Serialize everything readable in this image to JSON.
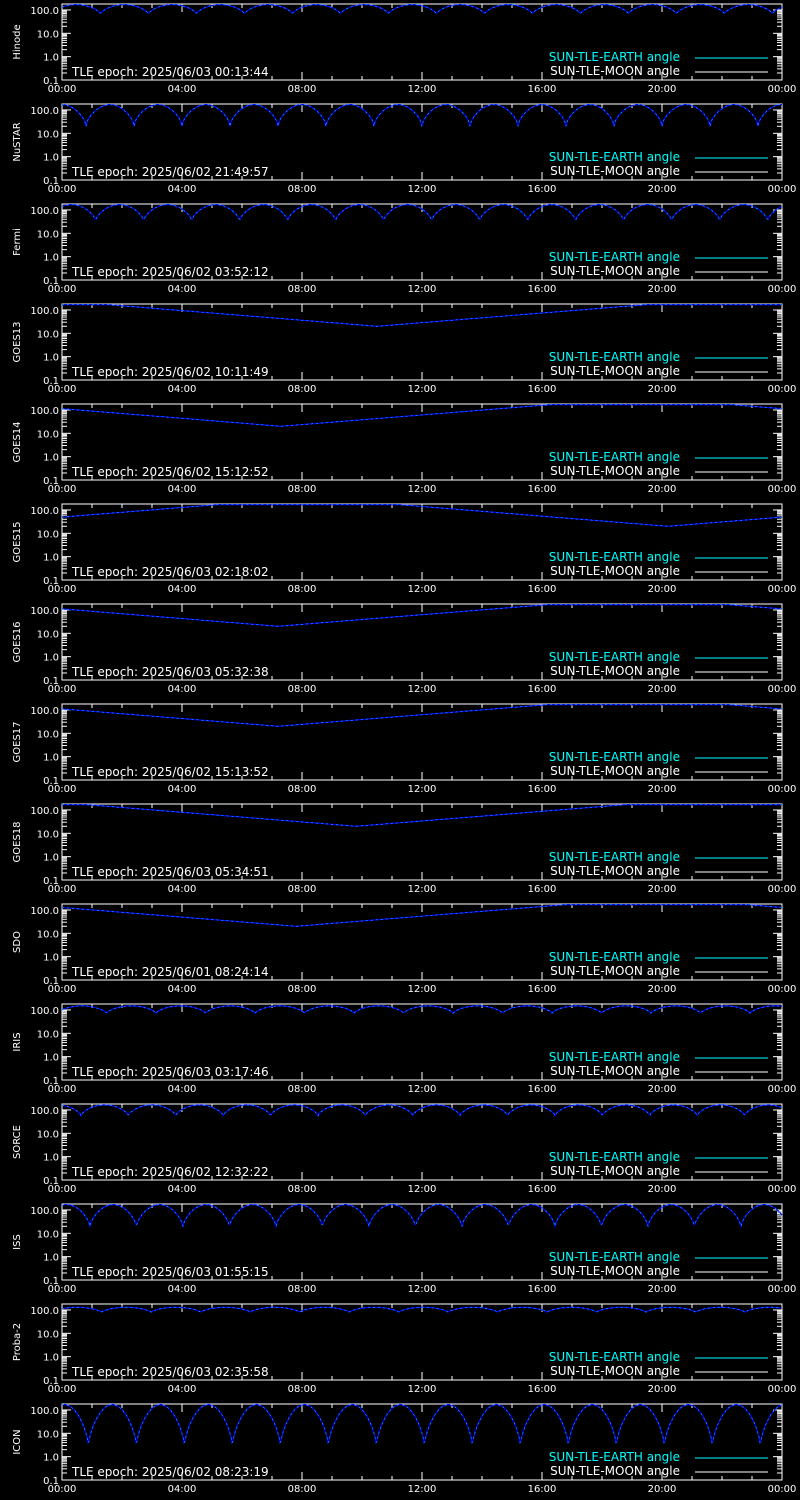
{
  "legend": {
    "earth_label": "SUN-TLE-EARTH angle",
    "moon_label": "SUN-TLE-MOON angle"
  },
  "colors": {
    "background": "#000000",
    "frame": "#ffffff",
    "earth_line": "#00ffff",
    "moon_line": "#ffffff",
    "sun_line": "#0000ff",
    "text": "#ffffff"
  },
  "chart_data": [
    {
      "type": "line",
      "panel": "Hinode",
      "epoch": "TLE epoch: 2025/06/03 00:13:44",
      "x_ticks": [
        "00:00",
        "04:00",
        "08:00",
        "12:00",
        "16:00",
        "20:00",
        "00:00"
      ],
      "y_ticks": [
        "0.1",
        "1.0",
        "10.0",
        "100.0"
      ],
      "ylim": [
        0.1,
        180
      ],
      "yscale": "log",
      "xlim_hours": [
        0,
        24
      ],
      "orbit": {
        "period_hours": 1.6,
        "min": 65,
        "max": 170,
        "phase": 0.2
      }
    },
    {
      "type": "line",
      "panel": "NuSTAR",
      "epoch": "TLE epoch: 2025/06/02 21:49:57",
      "x_ticks": [
        "00:00",
        "04:00",
        "08:00",
        "12:00",
        "16:00",
        "20:00",
        "00:00"
      ],
      "y_ticks": [
        "0.1",
        "1.0",
        "10.0",
        "100.0"
      ],
      "ylim": [
        0.1,
        180
      ],
      "yscale": "log",
      "xlim_hours": [
        0,
        24
      ],
      "orbit": {
        "period_hours": 1.6,
        "min": 20,
        "max": 170,
        "phase": 0.5
      }
    },
    {
      "type": "line",
      "panel": "Fermi",
      "epoch": "TLE epoch: 2025/06/02 03:52:12",
      "x_ticks": [
        "00:00",
        "04:00",
        "08:00",
        "12:00",
        "16:00",
        "20:00",
        "00:00"
      ],
      "y_ticks": [
        "0.1",
        "1.0",
        "10.0",
        "100.0"
      ],
      "ylim": [
        0.1,
        180
      ],
      "yscale": "log",
      "xlim_hours": [
        0,
        24
      ],
      "orbit": {
        "period_hours": 1.6,
        "min": 33,
        "max": 170,
        "phase": 0.3
      }
    },
    {
      "type": "line",
      "panel": "GOES13",
      "epoch": "TLE epoch: 2025/06/02 10:11:49",
      "x_ticks": [
        "00:00",
        "04:00",
        "08:00",
        "12:00",
        "16:00",
        "20:00",
        "00:00"
      ],
      "y_ticks": [
        "0.1",
        "1.0",
        "10.0",
        "100.0"
      ],
      "ylim": [
        0.1,
        180
      ],
      "yscale": "log",
      "xlim_hours": [
        0,
        24
      ],
      "geo": {
        "min_hour": 10.5,
        "min": 20,
        "max": 170
      }
    },
    {
      "type": "line",
      "panel": "GOES14",
      "epoch": "TLE epoch: 2025/06/02 15:12:52",
      "x_ticks": [
        "00:00",
        "04:00",
        "08:00",
        "12:00",
        "16:00",
        "20:00",
        "00:00"
      ],
      "y_ticks": [
        "0.1",
        "1.0",
        "10.0",
        "100.0"
      ],
      "ylim": [
        0.1,
        180
      ],
      "yscale": "log",
      "xlim_hours": [
        0,
        24
      ],
      "geo": {
        "min_hour": 7.3,
        "min": 20,
        "max": 170
      }
    },
    {
      "type": "line",
      "panel": "GOES15",
      "epoch": "TLE epoch: 2025/06/03 02:18:02",
      "x_ticks": [
        "00:00",
        "04:00",
        "08:00",
        "12:00",
        "16:00",
        "20:00",
        "00:00"
      ],
      "y_ticks": [
        "0.1",
        "1.0",
        "10.0",
        "100.0"
      ],
      "ylim": [
        0.1,
        180
      ],
      "yscale": "log",
      "xlim_hours": [
        0,
        24
      ],
      "geo": {
        "min_hour": 20.2,
        "min": 20,
        "max": 170
      }
    },
    {
      "type": "line",
      "panel": "GOES16",
      "epoch": "TLE epoch: 2025/06/03 05:32:38",
      "x_ticks": [
        "00:00",
        "04:00",
        "08:00",
        "12:00",
        "16:00",
        "20:00",
        "00:00"
      ],
      "y_ticks": [
        "0.1",
        "1.0",
        "10.0",
        "100.0"
      ],
      "ylim": [
        0.1,
        180
      ],
      "yscale": "log",
      "xlim_hours": [
        0,
        24
      ],
      "geo": {
        "min_hour": 7.2,
        "min": 20,
        "max": 170
      }
    },
    {
      "type": "line",
      "panel": "GOES17",
      "epoch": "TLE epoch: 2025/06/02 15:13:52",
      "x_ticks": [
        "00:00",
        "04:00",
        "08:00",
        "12:00",
        "16:00",
        "20:00",
        "00:00"
      ],
      "y_ticks": [
        "0.1",
        "1.0",
        "10.0",
        "100.0"
      ],
      "ylim": [
        0.1,
        180
      ],
      "yscale": "log",
      "xlim_hours": [
        0,
        24
      ],
      "geo": {
        "min_hour": 7.2,
        "min": 20,
        "max": 170
      }
    },
    {
      "type": "line",
      "panel": "GOES18",
      "epoch": "TLE epoch: 2025/06/03 05:34:51",
      "x_ticks": [
        "00:00",
        "04:00",
        "08:00",
        "12:00",
        "16:00",
        "20:00",
        "00:00"
      ],
      "y_ticks": [
        "0.1",
        "1.0",
        "10.0",
        "100.0"
      ],
      "ylim": [
        0.1,
        180
      ],
      "yscale": "log",
      "xlim_hours": [
        0,
        24
      ],
      "geo": {
        "min_hour": 9.8,
        "min": 20,
        "max": 170
      }
    },
    {
      "type": "line",
      "panel": "SDO",
      "epoch": "TLE epoch: 2025/06/01 08:24:14",
      "x_ticks": [
        "00:00",
        "04:00",
        "08:00",
        "12:00",
        "16:00",
        "20:00",
        "00:00"
      ],
      "y_ticks": [
        "0.1",
        "1.0",
        "10.0",
        "100.0"
      ],
      "ylim": [
        0.1,
        180
      ],
      "yscale": "log",
      "xlim_hours": [
        0,
        24
      ],
      "geo": {
        "min_hour": 7.8,
        "min": 20,
        "max": 170
      }
    },
    {
      "type": "line",
      "panel": "IRIS",
      "epoch": "TLE epoch: 2025/06/03 03:17:46",
      "x_ticks": [
        "00:00",
        "04:00",
        "08:00",
        "12:00",
        "16:00",
        "20:00",
        "00:00"
      ],
      "y_ticks": [
        "0.1",
        "1.0",
        "10.0",
        "100.0"
      ],
      "ylim": [
        0.1,
        180
      ],
      "yscale": "log",
      "xlim_hours": [
        0,
        24
      ],
      "orbit": {
        "period_hours": 1.65,
        "min": 70,
        "max": 150,
        "phase": 0.1
      }
    },
    {
      "type": "line",
      "panel": "SORCE",
      "epoch": "TLE epoch: 2025/06/02 12:32:22",
      "x_ticks": [
        "00:00",
        "04:00",
        "08:00",
        "12:00",
        "16:00",
        "20:00",
        "00:00"
      ],
      "y_ticks": [
        "0.1",
        "1.0",
        "10.0",
        "100.0"
      ],
      "ylim": [
        0.1,
        180
      ],
      "yscale": "log",
      "xlim_hours": [
        0,
        24
      ],
      "orbit": {
        "period_hours": 1.58,
        "min": 55,
        "max": 165,
        "phase": 0.6
      }
    },
    {
      "type": "line",
      "panel": "ISS",
      "epoch": "TLE epoch: 2025/06/03 01:55:15",
      "x_ticks": [
        "00:00",
        "04:00",
        "08:00",
        "12:00",
        "16:00",
        "20:00",
        "00:00"
      ],
      "y_ticks": [
        "0.1",
        "1.0",
        "10.0",
        "100.0"
      ],
      "ylim": [
        0.1,
        180
      ],
      "yscale": "log",
      "xlim_hours": [
        0,
        24
      ],
      "orbit": {
        "period_hours": 1.55,
        "min": 18,
        "max": 170,
        "phase": 0.4
      }
    },
    {
      "type": "line",
      "panel": "Proba-2",
      "epoch": "TLE epoch: 2025/06/03 02:35:58",
      "x_ticks": [
        "00:00",
        "04:00",
        "08:00",
        "12:00",
        "16:00",
        "20:00",
        "00:00"
      ],
      "y_ticks": [
        "0.1",
        "1.0",
        "10.0",
        "100.0"
      ],
      "ylim": [
        0.1,
        180
      ],
      "yscale": "log",
      "xlim_hours": [
        0,
        24
      ],
      "orbit": {
        "period_hours": 1.65,
        "min": 78,
        "max": 130,
        "phase": 0.2
      }
    },
    {
      "type": "line",
      "panel": "ICON",
      "epoch": "TLE epoch: 2025/06/02 08:23:19",
      "x_ticks": [
        "00:00",
        "04:00",
        "08:00",
        "12:00",
        "16:00",
        "20:00",
        "00:00"
      ],
      "y_ticks": [
        "0.1",
        "1.0",
        "10.0",
        "100.0"
      ],
      "ylim": [
        0.1,
        180
      ],
      "yscale": "log",
      "xlim_hours": [
        0,
        24
      ],
      "orbit": {
        "period_hours": 1.6,
        "min": 2.5,
        "max": 170,
        "phase": 0.45
      }
    }
  ]
}
